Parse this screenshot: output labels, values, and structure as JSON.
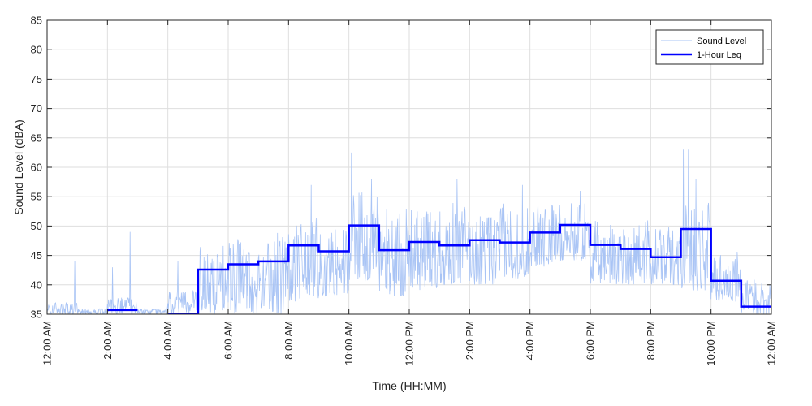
{
  "chart_data": {
    "type": "line",
    "xlabel": "Time (HH:MM)",
    "ylabel": "Sound Level (dBA)",
    "ylim": [
      35,
      85
    ],
    "xlim": [
      "12:00 AM",
      "12:00 AM"
    ],
    "y_ticks": [
      35,
      40,
      45,
      50,
      55,
      60,
      65,
      70,
      75,
      80,
      85
    ],
    "x_ticks": [
      "12:00 AM",
      "2:00 AM",
      "4:00 AM",
      "6:00 AM",
      "8:00 AM",
      "10:00 AM",
      "12:00 PM",
      "2:00 PM",
      "4:00 PM",
      "6:00 PM",
      "8:00 PM",
      "10:00 PM",
      "12:00 AM"
    ],
    "grid": true,
    "legend_position": "top-right",
    "series": [
      {
        "name": "Sound Level",
        "color": "#a9c4f5",
        "hour_envelope_db": [
          [
            35,
            37
          ],
          [
            35,
            36
          ],
          [
            35,
            38
          ],
          [
            35,
            36
          ],
          [
            35,
            39
          ],
          [
            35,
            47
          ],
          [
            35,
            48
          ],
          [
            35,
            50
          ],
          [
            37,
            52
          ],
          [
            38,
            50
          ],
          [
            40,
            56
          ],
          [
            38,
            53
          ],
          [
            39,
            53
          ],
          [
            40,
            54
          ],
          [
            40,
            52
          ],
          [
            41,
            54
          ],
          [
            43,
            54
          ],
          [
            44,
            54
          ],
          [
            40,
            51
          ],
          [
            40,
            51
          ],
          [
            40,
            50
          ],
          [
            39,
            54
          ],
          [
            37,
            46
          ],
          [
            35,
            41
          ]
        ],
        "peaks": [
          {
            "time": "12:55 AM",
            "value": 44
          },
          {
            "time": "2:10 AM",
            "value": 43
          },
          {
            "time": "2:45 AM",
            "value": 49
          },
          {
            "time": "4:20 AM",
            "value": 44
          },
          {
            "time": "8:45 AM",
            "value": 57
          },
          {
            "time": "10:05 AM",
            "value": 62.5
          },
          {
            "time": "10:45 AM",
            "value": 58
          },
          {
            "time": "1:35 PM",
            "value": 58
          },
          {
            "time": "3:45 PM",
            "value": 57
          },
          {
            "time": "5:40 PM",
            "value": 56
          },
          {
            "time": "9:05 PM",
            "value": 63
          },
          {
            "time": "9:15 PM",
            "value": 63
          },
          {
            "time": "9:30 PM",
            "value": 58
          }
        ]
      },
      {
        "name": "1-Hour Leq",
        "color": "#0000ff",
        "start_times": [
          "2:00 AM",
          "4:00 AM",
          "5:00 AM",
          "6:00 AM",
          "7:00 AM",
          "8:00 AM",
          "9:00 AM",
          "10:00 AM",
          "11:00 AM",
          "12:00 PM",
          "1:00 PM",
          "2:00 PM",
          "3:00 PM",
          "4:00 PM",
          "5:00 PM",
          "6:00 PM",
          "7:00 PM",
          "8:00 PM",
          "9:00 PM",
          "10:00 PM",
          "11:00 PM"
        ],
        "values": [
          35.7,
          35.1,
          42.6,
          43.5,
          44.0,
          46.7,
          45.7,
          50.1,
          45.9,
          47.3,
          46.7,
          47.6,
          47.2,
          48.9,
          50.2,
          46.8,
          46.1,
          44.7,
          49.5,
          40.7,
          36.3
        ]
      }
    ]
  }
}
